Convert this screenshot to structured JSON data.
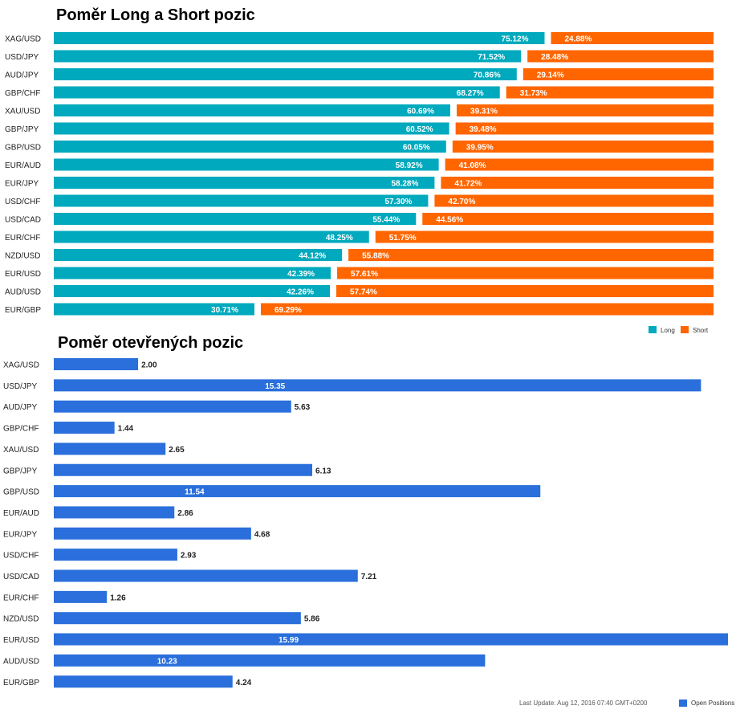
{
  "chart_data": [
    {
      "type": "bar",
      "orientation": "horizontal",
      "stacked": true,
      "title": "Poměr Long a Short pozic",
      "categories": [
        "XAG/USD",
        "USD/JPY",
        "AUD/JPY",
        "GBP/CHF",
        "XAU/USD",
        "GBP/JPY",
        "GBP/USD",
        "EUR/AUD",
        "EUR/JPY",
        "USD/CHF",
        "USD/CAD",
        "EUR/CHF",
        "NZD/USD",
        "EUR/USD",
        "AUD/USD",
        "EUR/GBP"
      ],
      "series": [
        {
          "name": "Long",
          "color": "#00a9bd",
          "values": [
            75.12,
            71.52,
            70.86,
            68.27,
            60.69,
            60.52,
            60.05,
            58.92,
            58.28,
            57.3,
            55.44,
            48.25,
            44.12,
            42.39,
            42.26,
            30.71
          ],
          "labels": [
            "75.12%",
            "71.52%",
            "70.86%",
            "68.27%",
            "60.69%",
            "60.52%",
            "60.05%",
            "58.92%",
            "58.28%",
            "57.30%",
            "55.44%",
            "48.25%",
            "44.12%",
            "42.39%",
            "42.26%",
            "30.71%"
          ]
        },
        {
          "name": "Short",
          "color": "#ff6600",
          "values": [
            24.88,
            28.48,
            29.14,
            31.73,
            39.31,
            39.48,
            39.95,
            41.08,
            41.72,
            42.7,
            44.56,
            51.75,
            55.88,
            57.61,
            57.74,
            69.29
          ],
          "labels": [
            "24.88%",
            "28.48%",
            "29.14%",
            "31.73%",
            "39.31%",
            "39.48%",
            "39.95%",
            "41.08%",
            "41.72%",
            "42.70%",
            "44.56%",
            "51.75%",
            "55.88%",
            "57.61%",
            "57.74%",
            "69.29%"
          ]
        }
      ],
      "legend": "bottom-right",
      "grid": false
    },
    {
      "type": "bar",
      "orientation": "horizontal",
      "title": "Poměr otevřených pozic",
      "categories": [
        "XAG/USD",
        "USD/JPY",
        "AUD/JPY",
        "GBP/CHF",
        "XAU/USD",
        "GBP/JPY",
        "GBP/USD",
        "EUR/AUD",
        "EUR/JPY",
        "USD/CHF",
        "USD/CAD",
        "EUR/CHF",
        "NZD/USD",
        "EUR/USD",
        "AUD/USD",
        "EUR/GBP"
      ],
      "series": [
        {
          "name": "Open Positions",
          "color": "#2a6fdb",
          "values": [
            2.0,
            15.35,
            5.63,
            1.44,
            2.65,
            6.13,
            11.54,
            2.86,
            4.68,
            2.93,
            7.21,
            1.26,
            5.86,
            15.99,
            10.23,
            4.24
          ],
          "labels": [
            "2.00",
            "15.35",
            "5.63",
            "1.44",
            "2.65",
            "6.13",
            "11.54",
            "2.86",
            "4.68",
            "2.93",
            "7.21",
            "1.26",
            "5.86",
            "15.99",
            "10.23",
            "4.24"
          ]
        }
      ],
      "xlim": [
        0,
        15.99
      ],
      "legend": "bottom-right",
      "grid": false,
      "footer": "Last Update: Aug 12, 2016 07:40 GMT+0200"
    }
  ]
}
